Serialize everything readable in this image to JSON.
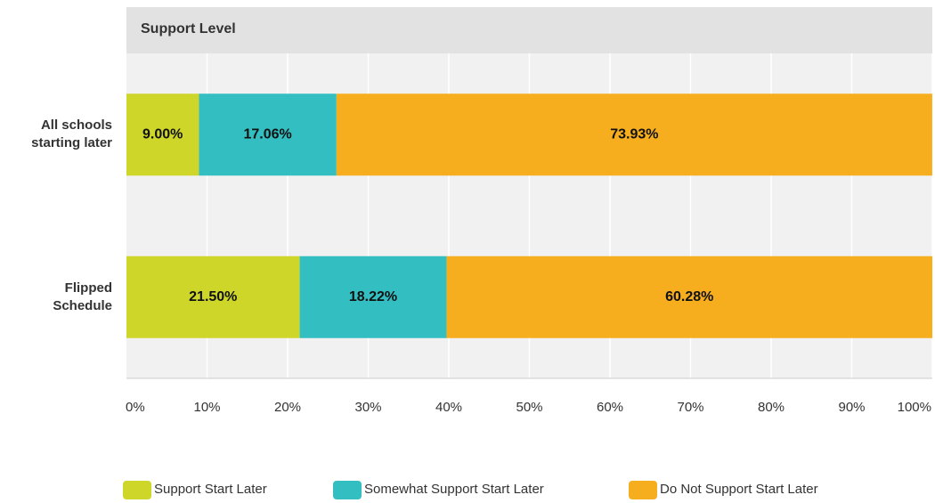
{
  "chart_data": {
    "type": "stacked-bar-horizontal",
    "title": "Support Level",
    "categories": [
      "All schools starting later",
      "Flipped Schedule"
    ],
    "series": [
      {
        "name": "Support Start Later",
        "color": "#cdd629",
        "values": [
          9.0,
          21.5
        ],
        "value_labels": [
          "9.00%",
          "21.50%"
        ]
      },
      {
        "name": "Somewhat Support Start Later",
        "color": "#33bec1",
        "values": [
          17.06,
          18.22
        ],
        "value_labels": [
          "17.06%",
          "18.22%"
        ]
      },
      {
        "name": "Do Not Support Start Later",
        "color": "#f6ae1f",
        "values": [
          73.93,
          60.28
        ],
        "value_labels": [
          "73.93%",
          "60.28%"
        ]
      }
    ],
    "xlim": [
      0,
      100
    ],
    "xticks": [
      {
        "value": 0,
        "label": "0%"
      },
      {
        "value": 10,
        "label": "10%"
      },
      {
        "value": 20,
        "label": "20%"
      },
      {
        "value": 30,
        "label": "30%"
      },
      {
        "value": 40,
        "label": "40%"
      },
      {
        "value": 50,
        "label": "50%"
      },
      {
        "value": 60,
        "label": "60%"
      },
      {
        "value": 70,
        "label": "70%"
      },
      {
        "value": 80,
        "label": "80%"
      },
      {
        "value": 90,
        "label": "90%"
      },
      {
        "value": 100,
        "label": "100%"
      }
    ],
    "grid": true,
    "legend": "bottom"
  }
}
